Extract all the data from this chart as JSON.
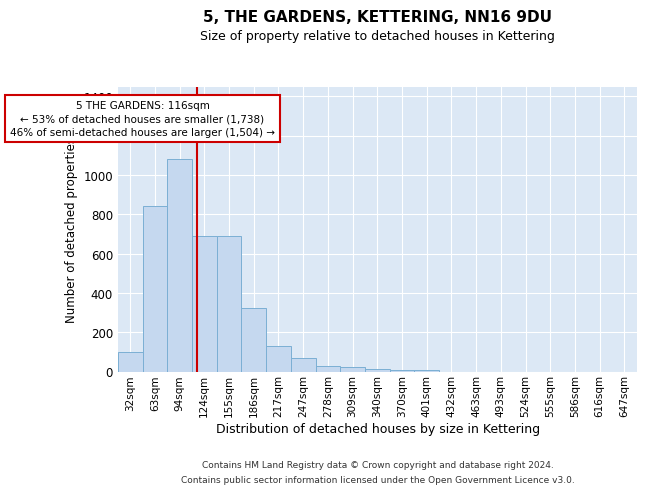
{
  "title": "5, THE GARDENS, KETTERING, NN16 9DU",
  "subtitle": "Size of property relative to detached houses in Kettering",
  "xlabel": "Distribution of detached houses by size in Kettering",
  "ylabel": "Number of detached properties",
  "categories": [
    "32sqm",
    "63sqm",
    "94sqm",
    "124sqm",
    "155sqm",
    "186sqm",
    "217sqm",
    "247sqm",
    "278sqm",
    "309sqm",
    "340sqm",
    "370sqm",
    "401sqm",
    "432sqm",
    "463sqm",
    "493sqm",
    "524sqm",
    "555sqm",
    "586sqm",
    "616sqm",
    "647sqm"
  ],
  "values": [
    100,
    840,
    1080,
    690,
    690,
    325,
    130,
    68,
    30,
    22,
    15,
    10,
    10,
    0,
    0,
    0,
    0,
    0,
    0,
    0,
    0
  ],
  "bar_color": "#c5d8ef",
  "bar_edge_color": "#7bafd4",
  "property_line_x": 3,
  "annotation_title": "5 THE GARDENS: 116sqm",
  "annotation_line1": "← 53% of detached houses are smaller (1,738)",
  "annotation_line2": "46% of semi-detached houses are larger (1,504) →",
  "line_color": "#cc0000",
  "ylim": [
    0,
    1450
  ],
  "yticks": [
    0,
    200,
    400,
    600,
    800,
    1000,
    1200,
    1400
  ],
  "bg_color": "#dce8f5",
  "grid_color": "#ffffff",
  "footer1": "Contains HM Land Registry data © Crown copyright and database right 2024.",
  "footer2": "Contains public sector information licensed under the Open Government Licence v3.0.",
  "bin_size": 31,
  "first_bin": 32,
  "n_bins": 21
}
